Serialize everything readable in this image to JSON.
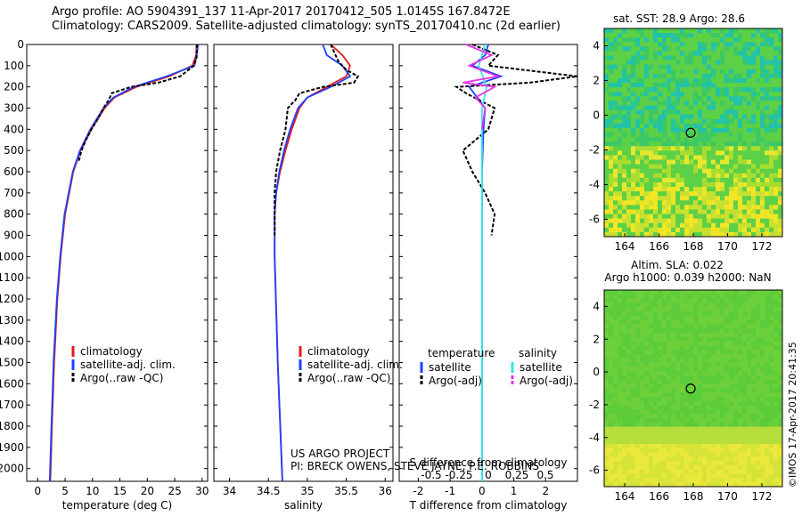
{
  "header": {
    "line1": "Argo profile: AO 5904391_137 11-Apr-2017 20170412_505 1.0145S 167.8472E",
    "line2": "Climatology: CARS2009. Satellite-adjusted climatology: synTS_20170410.nc (2d earlier)"
  },
  "colors": {
    "climatology": "#e41a1c",
    "satellite": "#1f3fff",
    "argo": "#000000",
    "salinity_sat": "#33e6e6",
    "salinity_argo": "#e633e6"
  },
  "chart_data": [
    {
      "type": "line",
      "name": "temperature-profile",
      "xlabel": "temperature (deg C)",
      "ylabel": "",
      "xlim": [
        -2,
        31
      ],
      "ylim": [
        2060,
        0
      ],
      "xticks": [
        0,
        5,
        10,
        15,
        20,
        25,
        30
      ],
      "yticks": [
        0,
        100,
        200,
        300,
        400,
        500,
        600,
        700,
        800,
        900,
        1000,
        1100,
        1200,
        1300,
        1400,
        1500,
        1600,
        1700,
        1800,
        1900,
        2000
      ],
      "legend": [
        "climatology",
        "satellite-adj. clim.",
        "Argo(..raw -QC)"
      ],
      "series": [
        {
          "name": "climatology",
          "depth": [
            0,
            50,
            100,
            150,
            200,
            250,
            300,
            400,
            500,
            600,
            800,
            1000,
            1200,
            1500,
            1800,
            2060
          ],
          "values": [
            29,
            28.9,
            28.2,
            24,
            18,
            14,
            12.2,
            9.8,
            7.8,
            6.5,
            5,
            4.2,
            3.6,
            3,
            2.6,
            2.3
          ]
        },
        {
          "name": "satellite-adj. clim.",
          "depth": [
            0,
            50,
            100,
            150,
            200,
            250,
            300,
            400,
            500,
            600,
            800,
            1000,
            1200,
            1500,
            1800,
            2060
          ],
          "values": [
            29.3,
            29,
            28.6,
            23.5,
            17.5,
            13.8,
            12,
            9.6,
            7.7,
            6.4,
            4.9,
            4.1,
            3.5,
            2.9,
            2.5,
            2.2
          ]
        },
        {
          "name": "Argo(..raw -QC)",
          "depth": [
            0,
            30,
            60,
            100,
            150,
            180,
            200,
            230,
            260,
            300,
            350,
            400,
            450,
            500,
            550
          ],
          "values": [
            29,
            29,
            29,
            28.5,
            26,
            22,
            17,
            13.5,
            13,
            12,
            11,
            9.8,
            8.8,
            8,
            7.5
          ]
        }
      ]
    },
    {
      "type": "line",
      "name": "salinity-profile",
      "xlabel": "salinity",
      "xlim": [
        33.8,
        36.1
      ],
      "ylim": [
        2060,
        0
      ],
      "xticks": [
        34,
        34.5,
        35,
        35.5,
        36
      ],
      "legend": [
        "climatology",
        "satellite-adj. clim.",
        "Argo(..raw -QC)"
      ],
      "series": [
        {
          "name": "climatology",
          "depth": [
            0,
            50,
            100,
            150,
            200,
            250,
            300,
            400,
            500,
            600,
            700,
            800,
            1000,
            1500,
            2060
          ],
          "values": [
            35.3,
            35.45,
            35.55,
            35.5,
            35.25,
            35,
            34.9,
            34.8,
            34.72,
            34.65,
            34.6,
            34.58,
            34.58,
            34.62,
            34.68
          ]
        },
        {
          "name": "satellite-adj. clim.",
          "depth": [
            0,
            50,
            100,
            150,
            200,
            250,
            300,
            400,
            500,
            600,
            700,
            800,
            1000,
            1500,
            2060
          ],
          "values": [
            35.2,
            35.25,
            35.45,
            35.55,
            35.3,
            35,
            34.88,
            34.78,
            34.7,
            34.64,
            34.6,
            34.58,
            34.58,
            34.62,
            34.68
          ]
        },
        {
          "name": "Argo(..raw -QC)",
          "depth": [
            0,
            80,
            120,
            150,
            180,
            200,
            230,
            260,
            300,
            400,
            500,
            600,
            700,
            800,
            900
          ],
          "values": [
            35.3,
            35.4,
            35.5,
            35.65,
            35.6,
            35.2,
            34.9,
            34.85,
            34.75,
            34.72,
            34.65,
            34.6,
            34.58,
            34.58,
            34.58
          ]
        }
      ]
    },
    {
      "type": "line",
      "name": "difference-profile",
      "xlabel": "T difference from climatology",
      "xlabel_top": "S difference from climatology",
      "xlim": [
        -2.6,
        3
      ],
      "ylim": [
        2060,
        0
      ],
      "xticks": [
        -2,
        -1,
        0,
        1,
        2
      ],
      "xticks_top": [
        "-0.5",
        "-0.25",
        "0",
        "0.25",
        "0.5"
      ],
      "legend_titles": [
        "temperature",
        "salinity"
      ],
      "legend": [
        "satellite",
        "Argo(-adj)",
        "satellite",
        "Argo(-adj)"
      ],
      "series": [
        {
          "name": "temperature satellite",
          "depth": [
            0,
            50,
            100,
            150,
            200,
            300,
            400,
            600,
            1000,
            2060
          ],
          "values": [
            0.2,
            0.1,
            -0.3,
            0.6,
            -0.4,
            0.1,
            0.05,
            0,
            0,
            0
          ]
        },
        {
          "name": "temperature Argo(-adj)",
          "depth": [
            0,
            50,
            100,
            150,
            180,
            200,
            230,
            300,
            400,
            500,
            600,
            700,
            800,
            900
          ],
          "values": [
            -0.3,
            0.5,
            0.2,
            3,
            1.5,
            -0.8,
            -0.5,
            0.4,
            0.2,
            -0.6,
            -0.3,
            0.1,
            0.4,
            0.3
          ]
        },
        {
          "name": "salinity satellite",
          "depth": [
            0,
            100,
            200,
            300,
            500,
            1000,
            2060
          ],
          "values": [
            0.1,
            -0.1,
            0.15,
            0,
            0,
            0,
            0
          ]
        },
        {
          "name": "salinity Argo(-adj)",
          "depth": [
            0,
            50,
            100,
            150,
            180,
            200,
            250,
            300,
            400
          ],
          "values": [
            -0.5,
            0.3,
            -0.4,
            0.5,
            -0.6,
            0.4,
            -0.2,
            0.1,
            0
          ]
        }
      ]
    },
    {
      "type": "heatmap",
      "name": "sst-map",
      "title": "sat. SST: 28.9  Argo: 28.6",
      "xlim": [
        162.8,
        173.2
      ],
      "ylim": [
        -7,
        5
      ],
      "xticks": [
        164,
        166,
        168,
        170,
        172
      ],
      "yticks": [
        4,
        2,
        0,
        -2,
        -4,
        -6
      ],
      "marker": {
        "lon": 167.8472,
        "lat": -1.0145
      }
    },
    {
      "type": "heatmap",
      "name": "sla-map",
      "title1": "Altim. SLA: 0.022",
      "title2": "Argo h1000: 0.039 h2000: NaN",
      "xlim": [
        162.8,
        173.2
      ],
      "ylim": [
        -7,
        5
      ],
      "xticks": [
        164,
        166,
        168,
        170,
        172
      ],
      "yticks": [
        4,
        2,
        0,
        -2,
        -4,
        -6
      ],
      "marker": {
        "lon": 167.8472,
        "lat": -1.0145
      }
    }
  ],
  "annotations": {
    "project_line1": "US ARGO PROJECT",
    "project_line2": "PI: BRECK OWENS, STEVE JAYNE, P.E. ROBBINS",
    "imos_stamp": "©IMOS 17-Apr-2017 20:41:35"
  }
}
